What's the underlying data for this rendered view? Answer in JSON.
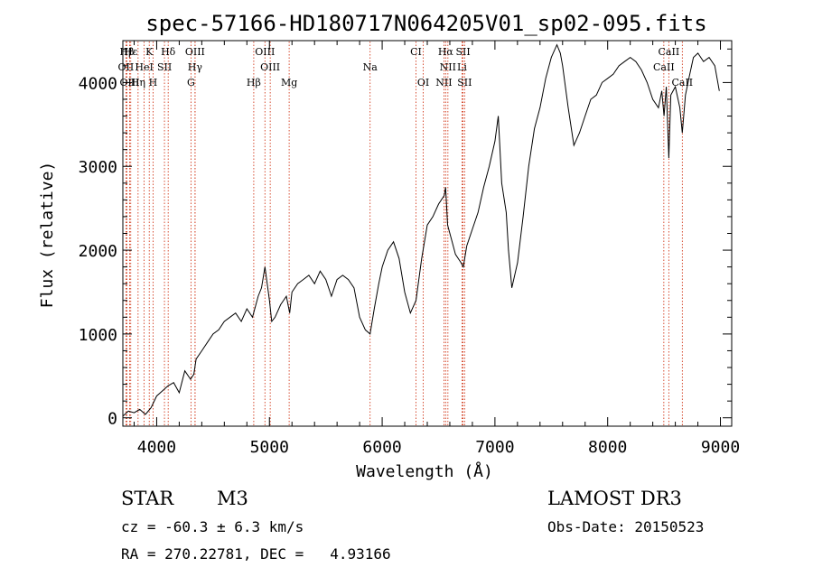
{
  "chart_data": {
    "type": "line",
    "title": "spec-57166-HD180717N064205V01_sp02-095.fits",
    "xlabel": "Wavelength (Å)",
    "ylabel": "Flux (relative)",
    "xlim": [
      3700,
      9100
    ],
    "ylim": [
      -100,
      4500
    ],
    "xticks": [
      4000,
      5000,
      6000,
      7000,
      8000,
      9000
    ],
    "yticks": [
      0,
      1000,
      2000,
      3000,
      4000
    ],
    "series": [
      {
        "name": "spectrum",
        "x": [
          3700,
          3750,
          3800,
          3850,
          3900,
          3950,
          4000,
          4050,
          4100,
          4150,
          4200,
          4250,
          4300,
          4330,
          4350,
          4400,
          4450,
          4500,
          4550,
          4600,
          4650,
          4700,
          4750,
          4800,
          4850,
          4880,
          4900,
          4930,
          4960,
          5000,
          5020,
          5050,
          5100,
          5150,
          5180,
          5200,
          5250,
          5300,
          5350,
          5400,
          5450,
          5500,
          5550,
          5600,
          5650,
          5700,
          5750,
          5800,
          5850,
          5893,
          5930,
          5970,
          6000,
          6050,
          6100,
          6150,
          6200,
          6250,
          6300,
          6350,
          6400,
          6450,
          6500,
          6550,
          6563,
          6580,
          6620,
          6650,
          6700,
          6720,
          6750,
          6800,
          6850,
          6900,
          6950,
          7000,
          7030,
          7060,
          7100,
          7120,
          7150,
          7200,
          7250,
          7300,
          7350,
          7400,
          7450,
          7500,
          7550,
          7580,
          7600,
          7650,
          7700,
          7750,
          7800,
          7850,
          7900,
          7950,
          8000,
          8050,
          8100,
          8150,
          8200,
          8250,
          8300,
          8350,
          8400,
          8450,
          8480,
          8500,
          8520,
          8542,
          8560,
          8600,
          8640,
          8662,
          8690,
          8720,
          8760,
          8800,
          8850,
          8900,
          8950,
          8990
        ],
        "values": [
          20,
          80,
          60,
          100,
          40,
          120,
          260,
          320,
          380,
          420,
          300,
          560,
          460,
          520,
          700,
          800,
          900,
          1000,
          1050,
          1150,
          1200,
          1250,
          1150,
          1300,
          1200,
          1350,
          1450,
          1550,
          1800,
          1400,
          1150,
          1200,
          1350,
          1450,
          1250,
          1500,
          1600,
          1650,
          1700,
          1600,
          1750,
          1650,
          1450,
          1650,
          1700,
          1650,
          1550,
          1200,
          1050,
          1000,
          1300,
          1600,
          1800,
          2000,
          2100,
          1900,
          1500,
          1250,
          1400,
          1900,
          2300,
          2400,
          2550,
          2650,
          2750,
          2300,
          2100,
          1950,
          1850,
          1800,
          2050,
          2250,
          2450,
          2750,
          3000,
          3300,
          3600,
          2800,
          2450,
          2000,
          1550,
          1850,
          2400,
          3000,
          3450,
          3700,
          4050,
          4300,
          4450,
          4350,
          4200,
          3700,
          3250,
          3400,
          3600,
          3800,
          3850,
          4000,
          4050,
          4100,
          4200,
          4250,
          4300,
          4250,
          4150,
          4000,
          3800,
          3700,
          3900,
          3600,
          3950,
          3100,
          3850,
          3950,
          3700,
          3400,
          3850,
          4050,
          4300,
          4350,
          4250,
          4300,
          4200,
          3900
        ]
      }
    ],
    "lines": [
      {
        "label": "Hβ",
        "x": 3736
      },
      {
        "label": "Hε",
        "x": 3770
      },
      {
        "label": "K",
        "x": 3934
      },
      {
        "label": "Hδ",
        "x": 4102
      },
      {
        "label": "OIII",
        "x": 4340
      },
      {
        "label": "OIII",
        "x": 4960
      },
      {
        "label": "CI",
        "x": 6300
      },
      {
        "label": "Hα",
        "x": 6563
      },
      {
        "label": "SII",
        "x": 6717
      },
      {
        "label": "CaII",
        "x": 8542
      },
      {
        "label": "OII",
        "x": 3727
      },
      {
        "label": "HeI",
        "x": 3889
      },
      {
        "label": "SII",
        "x": 4069
      },
      {
        "label": "Hγ",
        "x": 4340
      },
      {
        "label": "OIII",
        "x": 5007
      },
      {
        "label": "Na",
        "x": 5893
      },
      {
        "label": "NII",
        "x": 6583
      },
      {
        "label": "Li",
        "x": 6708
      },
      {
        "label": "CaII",
        "x": 8498
      },
      {
        "label": "OIII",
        "x": 3760
      },
      {
        "label": "Hη",
        "x": 3835
      },
      {
        "label": "H",
        "x": 3968
      },
      {
        "label": "G",
        "x": 4304
      },
      {
        "label": "Hβ",
        "x": 4861
      },
      {
        "label": "Mg",
        "x": 5175
      },
      {
        "label": "OI",
        "x": 6364
      },
      {
        "label": "NII",
        "x": 6548
      },
      {
        "label": "SII",
        "x": 6731
      },
      {
        "label": "CaII",
        "x": 8662
      }
    ]
  },
  "footer": {
    "object_type": "STAR",
    "subclass": "M3",
    "survey": "LAMOST DR3",
    "cz": "cz = -60.3 ± 6.3 km/s",
    "obs_date": "Obs-Date: 20150523",
    "coords": "RA = 270.22781, DEC =   4.93166"
  },
  "colors": {
    "axis": "#000000",
    "spectrum": "#000000",
    "line_marker": "#cc2200"
  }
}
